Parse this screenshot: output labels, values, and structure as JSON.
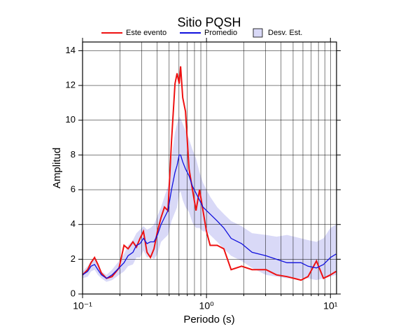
{
  "chart_data": {
    "type": "line",
    "title": "Sitio PQSH",
    "xlabel": "Periodo (s)",
    "ylabel": "Amplitud",
    "xscale": "log",
    "xlim": [
      0.1,
      11.2
    ],
    "ylim": [
      0,
      14.5
    ],
    "xticks": [
      {
        "value": 0.1,
        "label": "10⁻¹"
      },
      {
        "value": 1,
        "label": "10⁰"
      },
      {
        "value": 10,
        "label": "10¹"
      }
    ],
    "x_minor_ticks": [
      0.2,
      0.3,
      0.4,
      0.5,
      0.6,
      0.7,
      0.8,
      0.9,
      2,
      3,
      4,
      5,
      6,
      7,
      8,
      9
    ],
    "yticks": [
      0,
      2,
      4,
      6,
      8,
      10,
      12,
      14
    ],
    "grid": true,
    "x": [
      0.1,
      0.11,
      0.117,
      0.125,
      0.133,
      0.142,
      0.156,
      0.173,
      0.197,
      0.216,
      0.233,
      0.255,
      0.272,
      0.291,
      0.31,
      0.331,
      0.353,
      0.377,
      0.402,
      0.43,
      0.458,
      0.489,
      0.522,
      0.557,
      0.579,
      0.602,
      0.618,
      0.643,
      0.677,
      0.723,
      0.771,
      0.823,
      0.879,
      0.937,
      1.0,
      1.07,
      1.22,
      1.38,
      1.58,
      1.92,
      2.33,
      3.02,
      3.67,
      4.46,
      5.79,
      6.59,
      7.71,
      8.79,
      10,
      11.1
    ],
    "band": {
      "name": "Desv. Est.",
      "color": "#d9d9f7",
      "upper": [
        1.3,
        1.6,
        1.9,
        2.0,
        1.7,
        1.3,
        1.1,
        1.4,
        1.9,
        2.3,
        2.8,
        3.1,
        3.5,
        3.7,
        3.9,
        3.7,
        3.8,
        4.0,
        4.5,
        5.0,
        5.6,
        6.2,
        7.8,
        9.3,
        9.8,
        10.2,
        10.1,
        9.8,
        9.4,
        8.9,
        8.3,
        7.8,
        7.0,
        6.4,
        6.0,
        5.6,
        5.0,
        4.6,
        4.2,
        3.9,
        3.5,
        3.4,
        3.3,
        3.4,
        3.2,
        3.1,
        3.0,
        3.2,
        3.8,
        4.0
      ],
      "lower": [
        0.9,
        1.0,
        1.3,
        1.4,
        1.1,
        0.9,
        0.7,
        0.8,
        1.1,
        1.3,
        1.6,
        1.7,
        2.1,
        2.1,
        2.5,
        2.1,
        2.2,
        2.0,
        2.3,
        3.0,
        3.2,
        3.4,
        4.2,
        4.7,
        5.0,
        5.8,
        5.9,
        5.4,
        5.0,
        4.7,
        4.1,
        3.8,
        3.8,
        3.6,
        3.6,
        3.4,
        3.0,
        2.6,
        2.2,
        1.9,
        1.5,
        1.1,
        1.0,
        0.9,
        0.9,
        0.9,
        0.8,
        0.9,
        1.0,
        1.1
      ]
    },
    "series": [
      {
        "name": "Este evento",
        "color": "#ee1111",
        "values": [
          1.1,
          1.4,
          1.8,
          2.1,
          1.7,
          1.2,
          0.9,
          1.0,
          1.5,
          2.8,
          2.6,
          3.0,
          2.7,
          3.2,
          3.6,
          2.4,
          2.1,
          2.6,
          3.6,
          4.4,
          5.0,
          4.8,
          8.8,
          12.1,
          12.7,
          12.1,
          13.1,
          11.3,
          10.5,
          7.2,
          6.0,
          4.8,
          6.0,
          4.8,
          3.6,
          2.8,
          2.8,
          2.6,
          1.4,
          1.6,
          1.4,
          1.4,
          1.1,
          1.0,
          0.8,
          1.0,
          1.9,
          0.9,
          1.1,
          1.3
        ]
      },
      {
        "name": "Promedio",
        "color": "#1111dd",
        "values": [
          1.1,
          1.3,
          1.6,
          1.7,
          1.4,
          1.1,
          0.9,
          1.1,
          1.5,
          1.8,
          2.2,
          2.4,
          2.8,
          2.9,
          3.2,
          2.9,
          3.0,
          3.0,
          3.4,
          4.0,
          4.4,
          4.8,
          6.0,
          7.0,
          7.4,
          8.0,
          8.0,
          7.6,
          7.2,
          6.8,
          6.2,
          5.8,
          5.4,
          5.0,
          4.8,
          4.6,
          4.2,
          3.8,
          3.2,
          2.9,
          2.4,
          2.2,
          2.0,
          1.8,
          1.8,
          1.6,
          1.5,
          1.7,
          2.1,
          2.3
        ]
      }
    ]
  }
}
